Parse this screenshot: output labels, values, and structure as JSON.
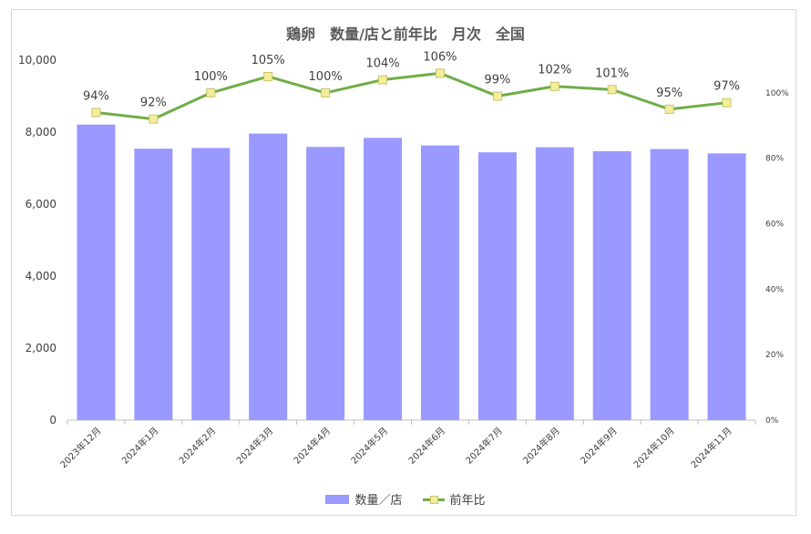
{
  "chart_data": {
    "type": "bar+line",
    "title": "鶏卵　数量/店と前年比　月次　全国",
    "categories": [
      "2023年12月",
      "2024年1月",
      "2024年2月",
      "2024年3月",
      "2024年4月",
      "2024年5月",
      "2024年6月",
      "2024年7月",
      "2024年8月",
      "2024年9月",
      "2024年10月",
      "2024年11月"
    ],
    "series": [
      {
        "name": "数量／店",
        "type": "bar",
        "axis": "left",
        "color": "#9999ff",
        "values": [
          8210,
          7540,
          7560,
          7960,
          7590,
          7840,
          7630,
          7440,
          7580,
          7470,
          7530,
          7410
        ]
      },
      {
        "name": "前年比",
        "type": "line",
        "axis": "right",
        "color": "#70ad47",
        "marker_color": "#f4ee9c",
        "values": [
          94,
          92,
          100,
          105,
          100,
          104,
          106,
          99,
          102,
          101,
          95,
          97
        ],
        "labels": [
          "94%",
          "92%",
          "100%",
          "105%",
          "100%",
          "104%",
          "106%",
          "99%",
          "102%",
          "101%",
          "95%",
          "97%"
        ]
      }
    ],
    "y_left": {
      "min": 0,
      "max": 10000,
      "ticks": [
        "0",
        "2,000",
        "4,000",
        "6,000",
        "8,000",
        "10,000"
      ]
    },
    "y_right": {
      "min": 0,
      "max": 110,
      "ticks": [
        "0%",
        "20%",
        "40%",
        "60%",
        "80%",
        "100%"
      ]
    },
    "grid": false,
    "legend": "bottom"
  }
}
